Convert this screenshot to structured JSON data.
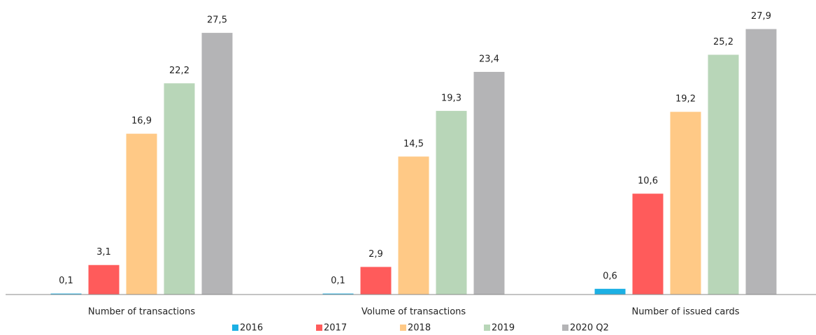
{
  "chart_data": {
    "type": "bar",
    "categories": [
      "Number of transactions",
      "Volume of transactions",
      "Number of issued cards"
    ],
    "series": [
      {
        "name": "2016",
        "color": "#1cb0e4",
        "values": [
          0.1,
          0.1,
          0.6
        ],
        "value_labels": [
          "0,1",
          "0,1",
          "0,6"
        ]
      },
      {
        "name": "2017",
        "color": "#ff5b5b",
        "values": [
          3.1,
          2.9,
          10.6
        ],
        "value_labels": [
          "3,1",
          "2,9",
          "10,6"
        ]
      },
      {
        "name": "2018",
        "color": "#ffc986",
        "values": [
          16.9,
          14.5,
          19.2
        ],
        "value_labels": [
          "16,9",
          "14,5",
          "19,2"
        ]
      },
      {
        "name": "2019",
        "color": "#b8d6b8",
        "values": [
          22.2,
          19.3,
          25.2
        ],
        "value_labels": [
          "22,2",
          "19,3",
          "25,2"
        ]
      },
      {
        "name": "2020 Q2",
        "color": "#b4b4b6",
        "values": [
          27.5,
          23.4,
          27.9
        ],
        "value_labels": [
          "27,5",
          "23,4",
          "27,9"
        ]
      }
    ],
    "ylim": [
      0,
      30
    ],
    "legend": "bottom"
  }
}
